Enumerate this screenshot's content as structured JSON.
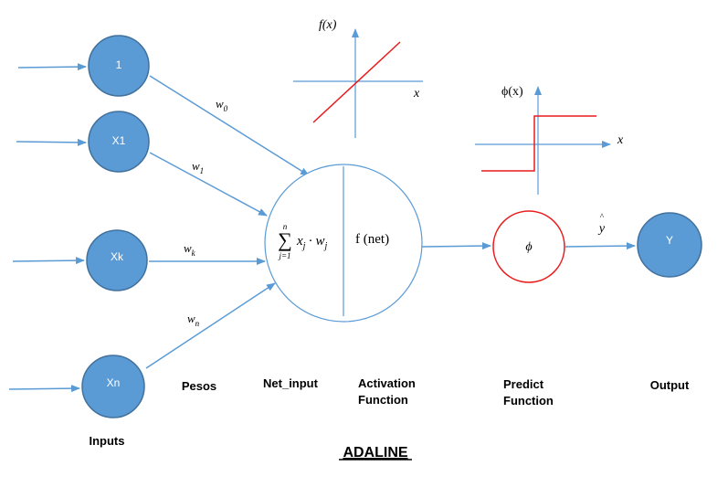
{
  "colors": {
    "node_fill": "#5B9BD5",
    "node_stroke": "#41719C",
    "arrow": "#5B9BD5",
    "activation_line": "#E81C1C",
    "predict_stroke": "#E81C1C",
    "neuron_stroke": "#5B9BD5"
  },
  "inputs": {
    "nodes": [
      "1",
      "X1",
      "Xk",
      "Xn"
    ],
    "caption": "Inputs"
  },
  "weights": {
    "w0": {
      "base": "w",
      "sub": "0"
    },
    "w1": {
      "base": "w",
      "sub": "1"
    },
    "wk": {
      "base": "w",
      "sub": "k"
    },
    "wn": {
      "base": "w",
      "sub": "n"
    },
    "caption": "Pesos"
  },
  "neuron": {
    "sum_upper": "n",
    "sum_lower": "j=1",
    "sum_symbol": "∑",
    "net_term_x": "x",
    "net_term_x_sub": "j",
    "net_term_dot": "·",
    "net_term_w": "w",
    "net_term_w_sub": "j",
    "activation": "f (net)"
  },
  "activation_plot": {
    "ylabel": "f(x)",
    "xlabel": "x"
  },
  "step_plot": {
    "ylabel": "ϕ(x)",
    "xlabel": "x"
  },
  "predict": {
    "symbol": "ϕ"
  },
  "output": {
    "hat_mark": "^",
    "yhat": "y",
    "node": "Y",
    "caption": "Output"
  },
  "captions": {
    "net_input": "Net_input",
    "activation_line1": "Activation",
    "activation_line2": "Function",
    "predict_line1": "Predict",
    "predict_line2": "Function"
  },
  "title": "ADALINE"
}
